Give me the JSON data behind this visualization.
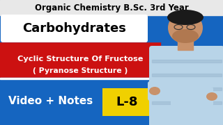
{
  "bg_color": "#1565c0",
  "title_text": "Organic Chemistry B.Sc. 3rd Year",
  "title_color": "#000000",
  "title_bg": "#e8e8e8",
  "carb_text": "Carbohydrates",
  "carb_bg": "#ffffff",
  "carb_color": "#000000",
  "cyclic_line1": "Cyclic Structure Of Fructose",
  "cyclic_line2": "( Pyranose Structure )",
  "cyclic_color": "#ffffff",
  "cyclic_bg": "#cc1111",
  "bottom_text": "Video + Notes",
  "bottom_color": "#ffffff",
  "label_text": "L-8",
  "label_bg": "#f0d000",
  "label_color": "#000000",
  "skin_color": "#c8916a",
  "shirt_color": "#b8d4e8",
  "hair_color": "#1a1a1a",
  "stripe_color": "#9ab8d0"
}
